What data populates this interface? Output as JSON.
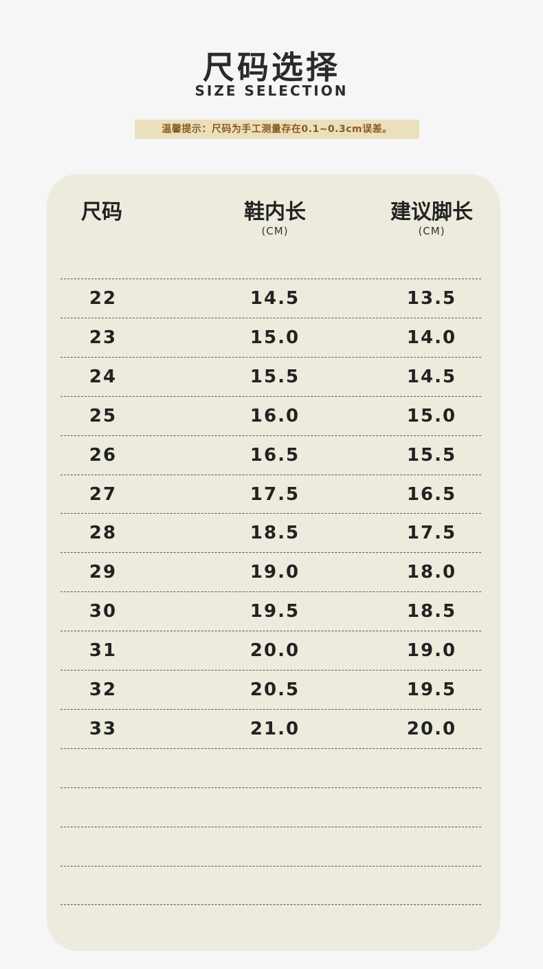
{
  "header": {
    "title": "尺码选择",
    "subtitle": "SIZE SELECTION",
    "notice": "温馨提示：尺码为手工测量存在0.1~0.3cm误差。"
  },
  "table": {
    "columns": [
      {
        "label": "尺码",
        "unit": ""
      },
      {
        "label": "鞋内长",
        "unit": "(CM)"
      },
      {
        "label": "建议脚长",
        "unit": "(CM)"
      }
    ],
    "rows": [
      [
        "22",
        "14.5",
        "13.5"
      ],
      [
        "23",
        "15.0",
        "14.0"
      ],
      [
        "24",
        "15.5",
        "14.5"
      ],
      [
        "25",
        "16.0",
        "15.0"
      ],
      [
        "26",
        "16.5",
        "15.5"
      ],
      [
        "27",
        "17.5",
        "16.5"
      ],
      [
        "28",
        "18.5",
        "17.5"
      ],
      [
        "29",
        "19.0",
        "18.0"
      ],
      [
        "30",
        "19.5",
        "18.5"
      ],
      [
        "31",
        "20.0",
        "19.0"
      ],
      [
        "32",
        "20.5",
        "19.5"
      ],
      [
        "33",
        "21.0",
        "20.0"
      ]
    ],
    "empty_rows": 4
  },
  "colors": {
    "background": "#f6f6f6",
    "card": "#ecebdd",
    "notice_bg": "#ebe0bd",
    "notice_text": "#8a5a1e"
  }
}
